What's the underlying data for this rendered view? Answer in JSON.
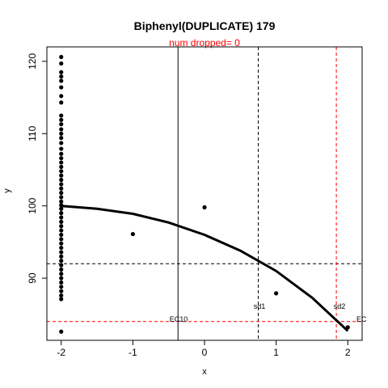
{
  "chart_data": {
    "type": "scatter",
    "title": "Biphenyl(DUPLICATE) 179",
    "subtitle": "num dropped= 0",
    "xlabel": "x",
    "ylabel": "y",
    "xlim": [
      -2.2,
      2.2
    ],
    "ylim": [
      81.4,
      122.0
    ],
    "x_ticks": [
      -2,
      -1,
      0,
      1,
      2
    ],
    "x_tick_labels": [
      "-2",
      "-1",
      "0",
      "1",
      "2"
    ],
    "y_ticks": [
      90,
      100,
      110,
      120
    ],
    "y_tick_labels": [
      "90",
      "100",
      "110",
      "120"
    ],
    "points": [
      {
        "x": -2,
        "y": 120.6
      },
      {
        "x": -2,
        "y": 119.7
      },
      {
        "x": -2,
        "y": 118.5
      },
      {
        "x": -2,
        "y": 117.9
      },
      {
        "x": -2,
        "y": 117.3
      },
      {
        "x": -2,
        "y": 116.4
      },
      {
        "x": -2,
        "y": 115.2
      },
      {
        "x": -2,
        "y": 114.3
      },
      {
        "x": -2,
        "y": 112.5
      },
      {
        "x": -2,
        "y": 111.9
      },
      {
        "x": -2,
        "y": 111.3
      },
      {
        "x": -2,
        "y": 110.6
      },
      {
        "x": -2,
        "y": 110.0
      },
      {
        "x": -2,
        "y": 109.4
      },
      {
        "x": -2,
        "y": 108.7
      },
      {
        "x": -2,
        "y": 107.9
      },
      {
        "x": -2,
        "y": 107.2
      },
      {
        "x": -2,
        "y": 106.6
      },
      {
        "x": -2,
        "y": 106.0
      },
      {
        "x": -2,
        "y": 105.4
      },
      {
        "x": -2,
        "y": 104.8
      },
      {
        "x": -2,
        "y": 104.2
      },
      {
        "x": -2,
        "y": 103.6
      },
      {
        "x": -2,
        "y": 103.0
      },
      {
        "x": -2,
        "y": 102.4
      },
      {
        "x": -2,
        "y": 101.8
      },
      {
        "x": -2,
        "y": 101.2
      },
      {
        "x": -2,
        "y": 100.6
      },
      {
        "x": -2,
        "y": 100.1
      },
      {
        "x": -2,
        "y": 99.6
      },
      {
        "x": -2,
        "y": 99.0
      },
      {
        "x": -2,
        "y": 98.4
      },
      {
        "x": -2,
        "y": 97.8
      },
      {
        "x": -2,
        "y": 97.2
      },
      {
        "x": -2,
        "y": 96.6
      },
      {
        "x": -2,
        "y": 96.0
      },
      {
        "x": -2,
        "y": 95.4
      },
      {
        "x": -2,
        "y": 94.8
      },
      {
        "x": -2,
        "y": 94.2
      },
      {
        "x": -2,
        "y": 93.6
      },
      {
        "x": -2,
        "y": 93.0
      },
      {
        "x": -2,
        "y": 92.4
      },
      {
        "x": -2,
        "y": 91.8
      },
      {
        "x": -2,
        "y": 91.2
      },
      {
        "x": -2,
        "y": 90.6
      },
      {
        "x": -2,
        "y": 90.0
      },
      {
        "x": -2,
        "y": 89.4
      },
      {
        "x": -2,
        "y": 88.8
      },
      {
        "x": -2,
        "y": 88.2
      },
      {
        "x": -2,
        "y": 87.6
      },
      {
        "x": -2,
        "y": 87.1
      },
      {
        "x": -2,
        "y": 82.6
      },
      {
        "x": -1,
        "y": 96.1
      },
      {
        "x": 0,
        "y": 99.8
      },
      {
        "x": 1,
        "y": 87.9
      },
      {
        "x": 2,
        "y": 83.2
      }
    ],
    "fit_curve": [
      {
        "x": -2,
        "y": 100.0
      },
      {
        "x": -1.5,
        "y": 99.6
      },
      {
        "x": -1.0,
        "y": 98.9
      },
      {
        "x": -0.5,
        "y": 97.7
      },
      {
        "x": 0,
        "y": 96.0
      },
      {
        "x": 0.5,
        "y": 93.8
      },
      {
        "x": 1.0,
        "y": 91.0
      },
      {
        "x": 1.5,
        "y": 87.3
      },
      {
        "x": 2.0,
        "y": 82.7
      }
    ],
    "reference_lines": {
      "ec10_x": -0.37,
      "sd1_x": 0.75,
      "sd1_y": 92.0,
      "sd2_x": 1.84,
      "sd2_y": 84.0
    },
    "annotations": {
      "ec10": "EC10",
      "sd1": "sd1",
      "sd2": "sd2",
      "edge": "EC"
    },
    "colors": {
      "points": "#000000",
      "curve": "#000000",
      "sd2_lines": "#ff0000",
      "subtitle": "#ff0000",
      "edge_label": "#999999"
    }
  }
}
